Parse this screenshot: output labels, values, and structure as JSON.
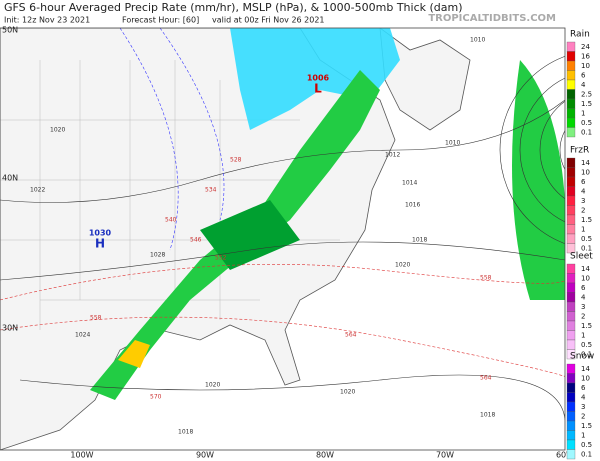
{
  "header": {
    "title": "GFS 6-hour Averaged Precip Rate (mm/hr), MSLP (hPa), & 1000-500mb Thick (dam)",
    "init": "Init: 12z Nov 23 2021",
    "forecast": "Forecast Hour: [60]",
    "valid": "valid at 00z Fri Nov 26 2021",
    "site": "TROPICALTIDBITS.COM"
  },
  "map": {
    "lat_labels": [
      "50N",
      "40N",
      "30N"
    ],
    "lon_labels": [
      "100W",
      "90W",
      "80W",
      "70W",
      "60W"
    ],
    "pressure_centers": [
      {
        "value": "1030",
        "type": "H",
        "color": "#1a2fbf"
      },
      {
        "value": "1006",
        "type": "L",
        "color": "#d00000"
      }
    ],
    "isobar_labels": [
      "1020",
      "1022",
      "1028",
      "1024",
      "1020",
      "1018",
      "1016",
      "1014",
      "1012",
      "1010",
      "1010",
      "1020",
      "1018",
      "1020",
      "1018"
    ],
    "thickness_labels": [
      "540",
      "546",
      "552",
      "558",
      "564",
      "570",
      "558",
      "564",
      "534",
      "528"
    ]
  },
  "legend": [
    {
      "title": "Rain",
      "ticks": [
        24,
        16,
        10,
        6,
        4,
        2.5,
        1.5,
        1,
        0.5,
        0.1
      ],
      "colors": [
        "#ff80c0",
        "#e00000",
        "#ff8000",
        "#ffc000",
        "#ffff00",
        "#006400",
        "#008c00",
        "#00b400",
        "#00d800",
        "#80f080"
      ]
    },
    {
      "title": "FrzR",
      "ticks": [
        14,
        10,
        6,
        4,
        3,
        2,
        1.5,
        1,
        0.5,
        0.1
      ],
      "colors": [
        "#800000",
        "#a00000",
        "#c00000",
        "#e00020",
        "#ff2040",
        "#ff4060",
        "#ff6080",
        "#ff80a0",
        "#ffa0c0",
        "#ffc0d8"
      ]
    },
    {
      "title": "Sleet",
      "ticks": [
        14,
        10,
        6,
        4,
        3,
        2,
        1.5,
        1,
        0.5,
        0.1
      ],
      "colors": [
        "#ff40a0",
        "#e020c0",
        "#c000c0",
        "#a000a0",
        "#c040c0",
        "#d060d0",
        "#e080e0",
        "#f0a0f0",
        "#f8c0f8",
        "#ffe0ff"
      ]
    },
    {
      "title": "Snow",
      "ticks": [
        14,
        10,
        6,
        4,
        3,
        2,
        1.5,
        1,
        0.5,
        0.1
      ],
      "colors": [
        "#e000e0",
        "#8000c0",
        "#000080",
        "#0000c0",
        "#0030ff",
        "#0060ff",
        "#0090ff",
        "#00b8ff",
        "#00e0ff",
        "#a0f8ff"
      ]
    }
  ]
}
